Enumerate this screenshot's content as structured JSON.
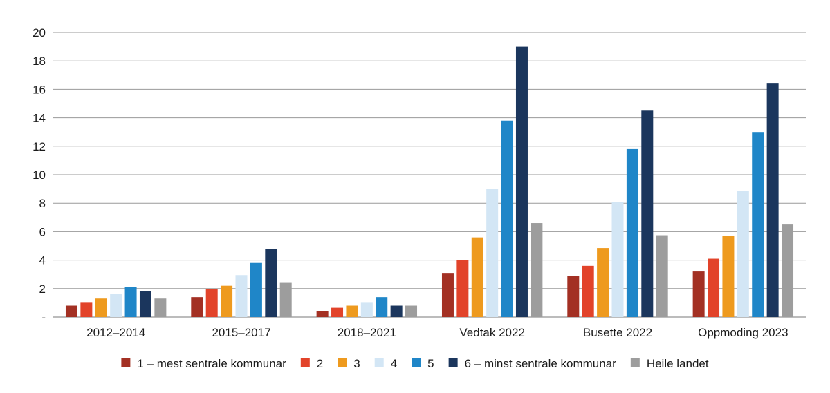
{
  "chart_data": {
    "type": "bar",
    "title": "",
    "xlabel": "",
    "ylabel": "",
    "ylim": [
      0,
      20
    ],
    "yticks": [
      {
        "value": 0,
        "label": "-"
      },
      {
        "value": 2,
        "label": "2"
      },
      {
        "value": 4,
        "label": "4"
      },
      {
        "value": 6,
        "label": "6"
      },
      {
        "value": 8,
        "label": "8"
      },
      {
        "value": 10,
        "label": "10"
      },
      {
        "value": 12,
        "label": "12"
      },
      {
        "value": 14,
        "label": "14"
      },
      {
        "value": 16,
        "label": "16"
      },
      {
        "value": 18,
        "label": "18"
      },
      {
        "value": 20,
        "label": "20"
      }
    ],
    "grid": true,
    "legend_position": "bottom",
    "categories": [
      "2012–2014",
      "2015–2017",
      "2018–2021",
      "Vedtak 2022",
      "Busette 2022",
      "Oppmoding 2023"
    ],
    "series": [
      {
        "name": "1 – mest sentrale kommunar",
        "color": "#a33023",
        "values": [
          0.8,
          1.4,
          0.4,
          3.1,
          2.9,
          3.2
        ]
      },
      {
        "name": "2",
        "color": "#e2432a",
        "values": [
          1.05,
          1.95,
          0.65,
          4.0,
          3.6,
          4.1
        ]
      },
      {
        "name": "3",
        "color": "#ee9a1e",
        "values": [
          1.3,
          2.2,
          0.8,
          5.6,
          4.85,
          5.7
        ]
      },
      {
        "name": "4",
        "color": "#d3e6f5",
        "values": [
          1.65,
          2.95,
          1.05,
          9.0,
          8.1,
          8.85
        ]
      },
      {
        "name": "5",
        "color": "#1f86c8",
        "values": [
          2.1,
          3.8,
          1.4,
          13.8,
          11.8,
          13.0
        ]
      },
      {
        "name": "6 – minst sentrale kommunar",
        "color": "#1b365d",
        "values": [
          1.8,
          4.8,
          0.8,
          19.0,
          14.55,
          16.45
        ]
      },
      {
        "name": "Heile landet",
        "color": "#9d9d9d",
        "values": [
          1.3,
          2.4,
          0.8,
          6.6,
          5.75,
          6.5
        ]
      }
    ]
  }
}
